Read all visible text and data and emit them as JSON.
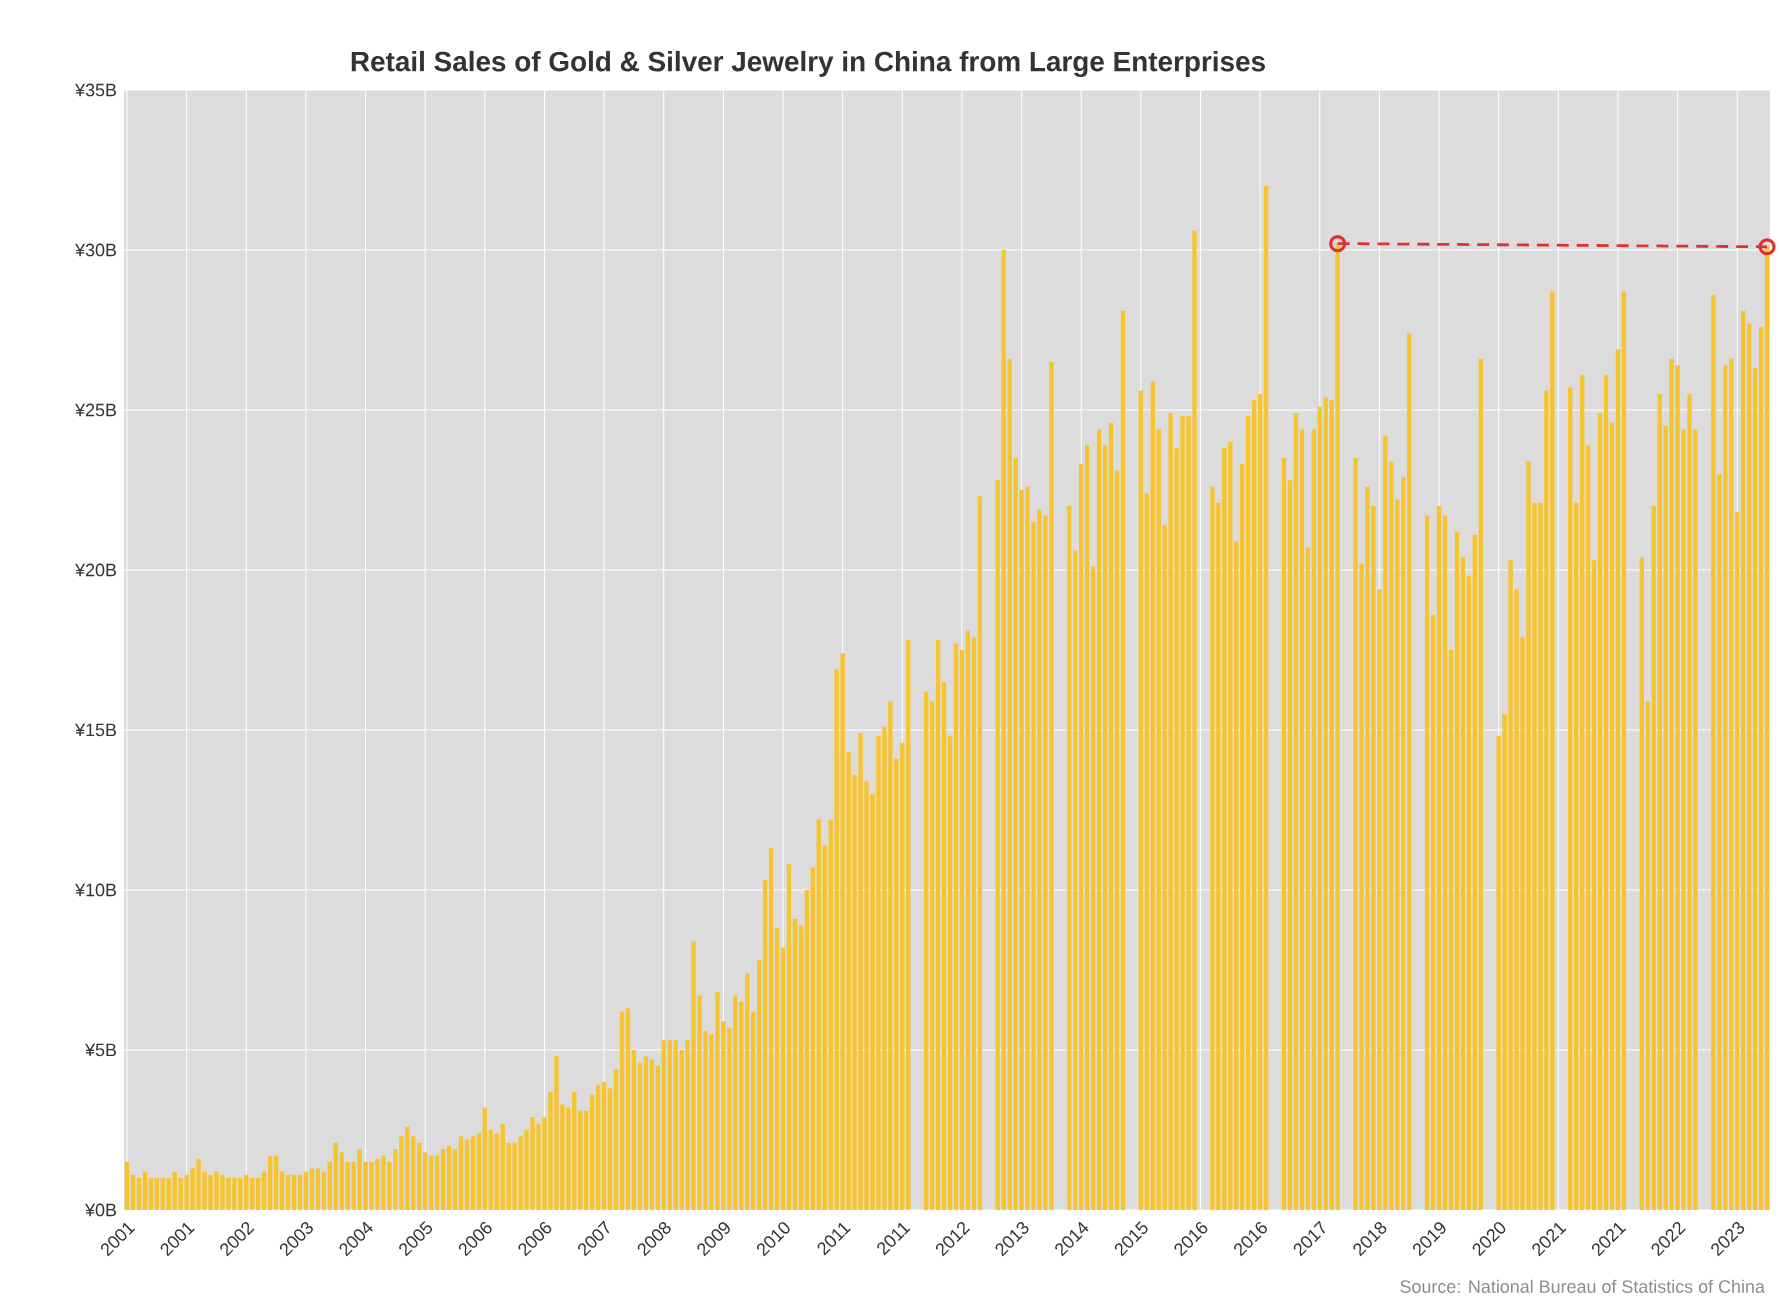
{
  "chart_data": {
    "type": "bar",
    "title": "Retail Sales of Gold & Silver Jewelry in China from Large Enterprises",
    "annotations": [
      "Source: National Bureau of Statistics of China"
    ],
    "categories": [
      "2001",
      null,
      null,
      null,
      null,
      null,
      null,
      null,
      null,
      null,
      "2001",
      null,
      null,
      null,
      null,
      null,
      null,
      null,
      null,
      null,
      "2002",
      null,
      null,
      null,
      null,
      null,
      null,
      null,
      null,
      null,
      "2003",
      null,
      null,
      null,
      null,
      null,
      null,
      null,
      null,
      null,
      "2004",
      null,
      null,
      null,
      null,
      null,
      null,
      null,
      null,
      null,
      "2005",
      null,
      null,
      null,
      null,
      null,
      null,
      null,
      null,
      null,
      "2006",
      null,
      null,
      null,
      null,
      null,
      null,
      null,
      null,
      null,
      "2006",
      null,
      null,
      null,
      null,
      null,
      null,
      null,
      null,
      null,
      "2007",
      null,
      null,
      null,
      null,
      null,
      null,
      null,
      null,
      null,
      "2008",
      null,
      null,
      null,
      null,
      null,
      null,
      null,
      null,
      null,
      "2009",
      null,
      null,
      null,
      null,
      null,
      null,
      null,
      null,
      null,
      "2010",
      null,
      null,
      null,
      null,
      null,
      null,
      null,
      null,
      null,
      "2011",
      null,
      null,
      null,
      null,
      null,
      null,
      null,
      null,
      null,
      "2011",
      null,
      null,
      null,
      null,
      null,
      null,
      null,
      null,
      null,
      "2012",
      null,
      null,
      null,
      null,
      null,
      null,
      null,
      null,
      null,
      "2013",
      null,
      null,
      null,
      null,
      null,
      null,
      null,
      null,
      null,
      "2014",
      null,
      null,
      null,
      null,
      null,
      null,
      null,
      null,
      null,
      "2015",
      null,
      null,
      null,
      null,
      null,
      null,
      null,
      null,
      null,
      "2016",
      null,
      null,
      null,
      null,
      null,
      null,
      null,
      null,
      null,
      "2016",
      null,
      null,
      null,
      null,
      null,
      null,
      null,
      null,
      null,
      "2017",
      null,
      null,
      null,
      null,
      null,
      null,
      null,
      null,
      null,
      "2018",
      null,
      null,
      null,
      null,
      null,
      null,
      null,
      null,
      null,
      "2019",
      null,
      null,
      null,
      null,
      null,
      null,
      null,
      null,
      null,
      "2020",
      null,
      null,
      null,
      null,
      null,
      null,
      null,
      null,
      null,
      "2021",
      null,
      null,
      null,
      null,
      null,
      null,
      null,
      null,
      null,
      "2021",
      null,
      null,
      null,
      null,
      null,
      null,
      null,
      null,
      null,
      "2022",
      null,
      null,
      null,
      null,
      null,
      null,
      null,
      null,
      null,
      "2023",
      null,
      null,
      null,
      null,
      null
    ],
    "ylim": [
      0,
      35
    ],
    "yticks": [
      {
        "value": 0,
        "label": "¥0B"
      },
      {
        "value": 5,
        "label": "¥5B"
      },
      {
        "value": 10,
        "label": "¥10B"
      },
      {
        "value": 15,
        "label": "¥15B"
      },
      {
        "value": 20,
        "label": "¥20B"
      },
      {
        "value": 25,
        "label": "¥25B"
      },
      {
        "value": 30,
        "label": "¥30B"
      },
      {
        "value": 35,
        "label": "¥35B"
      }
    ],
    "grid": true,
    "series": [
      {
        "color": "#f7c431",
        "values": [
          1.5,
          1.1,
          1.0,
          1.2,
          1.0,
          1.0,
          1.0,
          1.0,
          1.2,
          1.0,
          1.1,
          1.3,
          1.6,
          1.2,
          1.1,
          1.2,
          1.1,
          1.0,
          1.0,
          1.0,
          1.1,
          1.0,
          1.0,
          1.2,
          1.7,
          1.7,
          1.2,
          1.1,
          1.1,
          1.1,
          1.2,
          1.3,
          1.3,
          1.2,
          1.5,
          2.1,
          1.8,
          1.5,
          1.5,
          1.9,
          1.5,
          1.5,
          1.6,
          1.7,
          1.5,
          1.9,
          2.3,
          2.6,
          2.3,
          2.1,
          1.8,
          1.7,
          1.7,
          1.9,
          2.0,
          1.9,
          2.3,
          2.2,
          2.3,
          2.4,
          3.2,
          2.5,
          2.4,
          2.7,
          2.1,
          2.1,
          2.3,
          2.5,
          2.9,
          2.7,
          2.9,
          3.7,
          4.8,
          3.3,
          3.2,
          3.7,
          3.1,
          3.1,
          3.6,
          3.9,
          4.0,
          3.8,
          4.4,
          6.2,
          6.3,
          5.0,
          4.6,
          4.8,
          4.7,
          4.5,
          5.3,
          5.3,
          5.3,
          5.0,
          5.3,
          8.4,
          6.7,
          5.6,
          5.5,
          6.8,
          5.9,
          5.7,
          6.7,
          6.5,
          7.4,
          6.2,
          7.8,
          10.3,
          11.3,
          8.8,
          8.2,
          10.8,
          9.1,
          8.9,
          10.0,
          10.7,
          12.2,
          11.4,
          12.2,
          16.9,
          17.4,
          14.3,
          13.6,
          14.9,
          13.4,
          13.0,
          14.8,
          15.1,
          15.9,
          14.1,
          14.6,
          17.8,
          null,
          null,
          16.2,
          15.9,
          17.8,
          16.5,
          14.8,
          17.7,
          17.5,
          18.1,
          17.9,
          22.3,
          null,
          null,
          22.8,
          30.0,
          26.6,
          23.5,
          22.5,
          22.6,
          21.5,
          21.9,
          21.7,
          26.5,
          null,
          null,
          22.0,
          20.6,
          23.3,
          23.9,
          20.1,
          24.4,
          23.9,
          24.6,
          23.1,
          28.1,
          null,
          null,
          25.6,
          22.4,
          25.9,
          24.4,
          21.4,
          24.9,
          23.8,
          24.8,
          24.8,
          30.6,
          null,
          null,
          22.6,
          22.1,
          23.8,
          24.0,
          20.9,
          23.3,
          24.8,
          25.3,
          25.5,
          32.0,
          null,
          null,
          23.5,
          22.8,
          24.9,
          24.4,
          20.7,
          24.4,
          25.1,
          25.4,
          25.3,
          30.2,
          null,
          null,
          23.5,
          20.2,
          22.6,
          22.0,
          19.4,
          24.2,
          23.4,
          22.2,
          22.9,
          27.4,
          null,
          null,
          21.7,
          18.6,
          22.0,
          21.7,
          17.5,
          21.2,
          20.4,
          19.8,
          21.1,
          26.6,
          null,
          null,
          14.8,
          15.5,
          20.3,
          19.4,
          17.9,
          23.4,
          22.1,
          22.1,
          25.6,
          28.7,
          null,
          null,
          25.7,
          22.1,
          26.1,
          23.9,
          20.3,
          24.9,
          26.1,
          24.6,
          26.9,
          28.7,
          null,
          null,
          20.4,
          15.9,
          22.0,
          25.5,
          24.5,
          26.6,
          26.4,
          24.4,
          25.5,
          24.4,
          null,
          null,
          28.6,
          23.0,
          26.4,
          26.6,
          21.8,
          28.1,
          27.7,
          26.3,
          27.6,
          30.1
        ]
      },
      {
        "type": "line",
        "color": "#e03131",
        "line_style": "dashed",
        "marker": "circle",
        "values": [
          null,
          null,
          null,
          null,
          null,
          null,
          null,
          null,
          null,
          null,
          null,
          null,
          null,
          null,
          null,
          null,
          null,
          null,
          null,
          null,
          null,
          null,
          null,
          null,
          null,
          null,
          null,
          null,
          null,
          null,
          null,
          null,
          null,
          null,
          null,
          null,
          null,
          null,
          null,
          null,
          null,
          null,
          null,
          null,
          null,
          null,
          null,
          null,
          null,
          null,
          null,
          null,
          null,
          null,
          null,
          null,
          null,
          null,
          null,
          null,
          null,
          null,
          null,
          null,
          null,
          null,
          null,
          null,
          null,
          null,
          null,
          null,
          null,
          null,
          null,
          null,
          null,
          null,
          null,
          null,
          null,
          null,
          null,
          null,
          null,
          null,
          null,
          null,
          null,
          null,
          null,
          null,
          null,
          null,
          null,
          null,
          null,
          null,
          null,
          null,
          null,
          null,
          null,
          null,
          null,
          null,
          null,
          null,
          null,
          null,
          null,
          null,
          null,
          null,
          null,
          null,
          null,
          null,
          null,
          null,
          null,
          null,
          null,
          null,
          null,
          null,
          null,
          null,
          null,
          null,
          null,
          null,
          null,
          null,
          null,
          null,
          null,
          null,
          null,
          null,
          null,
          null,
          null,
          null,
          null,
          null,
          null,
          null,
          null,
          null,
          null,
          null,
          null,
          null,
          null,
          null,
          null,
          null,
          null,
          null,
          null,
          null,
          null,
          null,
          null,
          null,
          null,
          null,
          null,
          null,
          null,
          null,
          null,
          null,
          null,
          null,
          null,
          null,
          null,
          null,
          null,
          null,
          null,
          null,
          null,
          null,
          null,
          null,
          null,
          null,
          null,
          null,
          null,
          null,
          null,
          null,
          null,
          null,
          null,
          null,
          null,
          null,
          null,
          30.2,
          null,
          null,
          null,
          null,
          null,
          null,
          null,
          null,
          null,
          null,
          null,
          null,
          null,
          null,
          null,
          null,
          null,
          null,
          null,
          null,
          null,
          null,
          null,
          null,
          null,
          null,
          null,
          null,
          null,
          null,
          null,
          null,
          null,
          null,
          null,
          null,
          null,
          null,
          null,
          null,
          null,
          null,
          null,
          null,
          null,
          null,
          null,
          null,
          null,
          null,
          null,
          null,
          null,
          null,
          null,
          null,
          null,
          null,
          null,
          null,
          null,
          null,
          null,
          null,
          null,
          null,
          null,
          null,
          null,
          null,
          null,
          30.1
        ]
      }
    ]
  }
}
